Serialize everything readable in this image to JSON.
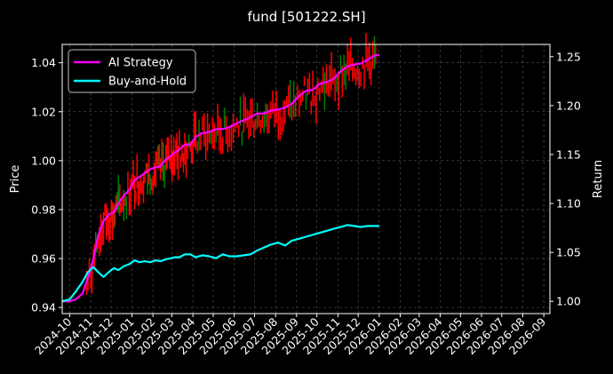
{
  "chart_data": {
    "type": "line",
    "title": "fund [501222.SH]",
    "ylabel": "Price",
    "ylabel_right": "Return",
    "grid": true,
    "legend": "top-left",
    "background": "#000000",
    "ylim": [
      0.9375,
      1.0475
    ],
    "ylim_right": [
      0.9875,
      1.2625
    ],
    "xlim": [
      "2024-09-20",
      "2026-09-10"
    ],
    "y_ticks": [
      "0.94",
      "0.96",
      "0.98",
      "1.00",
      "1.02",
      "1.04"
    ],
    "y_tick_values": [
      0.94,
      0.96,
      0.98,
      1.0,
      1.02,
      1.04
    ],
    "y_right_ticks": [
      "1.00",
      "1.05",
      "1.10",
      "1.15",
      "1.20",
      "1.25"
    ],
    "y_right_tick_values": [
      1.0,
      1.05,
      1.1,
      1.15,
      1.2,
      1.25
    ],
    "x_ticks": [
      "2024-10",
      "2024-11",
      "2024-12",
      "2025-01",
      "2025-02",
      "2025-03",
      "2025-04",
      "2025-05",
      "2025-06",
      "2025-07",
      "2025-08",
      "2025-09",
      "2025-10",
      "2025-11",
      "2025-12",
      "2026-01",
      "2026-02",
      "2026-03",
      "2026-04",
      "2026-05",
      "2026-06",
      "2026-07",
      "2026-08",
      "2026-09"
    ],
    "x_tick_dates": [
      "2024-10-01",
      "2024-11-01",
      "2024-12-01",
      "2025-01-01",
      "2025-02-01",
      "2025-03-01",
      "2025-04-01",
      "2025-05-01",
      "2025-06-01",
      "2025-07-01",
      "2025-08-01",
      "2025-09-01",
      "2025-10-01",
      "2025-11-01",
      "2025-12-01",
      "2026-01-01",
      "2026-02-01",
      "2026-03-01",
      "2026-04-01",
      "2026-05-01",
      "2026-06-01",
      "2026-07-01",
      "2026-08-01",
      "2026-09-01"
    ],
    "series": [
      {
        "name": "AI Strategy",
        "color": "#ff00ff",
        "axis": "right",
        "x": [
          "2024-09-20",
          "2024-10-01",
          "2024-10-10",
          "2024-10-20",
          "2024-10-28",
          "2024-11-05",
          "2024-11-12",
          "2024-11-20",
          "2024-11-28",
          "2024-12-05",
          "2024-12-12",
          "2024-12-20",
          "2024-12-28",
          "2025-01-05",
          "2025-01-12",
          "2025-01-20",
          "2025-01-28",
          "2025-02-05",
          "2025-02-12",
          "2025-02-20",
          "2025-02-28",
          "2025-03-05",
          "2025-03-12",
          "2025-03-20",
          "2025-03-28",
          "2025-04-05",
          "2025-04-15",
          "2025-04-25",
          "2025-05-05",
          "2025-05-15",
          "2025-05-25",
          "2025-06-05",
          "2025-06-15",
          "2025-06-25",
          "2025-07-05",
          "2025-07-15",
          "2025-07-25",
          "2025-08-05",
          "2025-08-15",
          "2025-08-25",
          "2025-09-05",
          "2025-09-15",
          "2025-09-25",
          "2025-10-05",
          "2025-10-15",
          "2025-10-25",
          "2025-11-05",
          "2025-11-15",
          "2025-11-25",
          "2025-12-05",
          "2025-12-15",
          "2025-12-25",
          "2026-01-01"
        ],
        "y": [
          1.0,
          1.0,
          1.002,
          1.008,
          1.024,
          1.043,
          1.067,
          1.082,
          1.089,
          1.091,
          1.1,
          1.108,
          1.114,
          1.124,
          1.127,
          1.131,
          1.135,
          1.137,
          1.138,
          1.145,
          1.149,
          1.152,
          1.155,
          1.16,
          1.16,
          1.168,
          1.172,
          1.173,
          1.176,
          1.176,
          1.178,
          1.182,
          1.185,
          1.188,
          1.192,
          1.192,
          1.195,
          1.196,
          1.198,
          1.202,
          1.21,
          1.215,
          1.216,
          1.222,
          1.224,
          1.227,
          1.235,
          1.24,
          1.242,
          1.243,
          1.247,
          1.251,
          1.252
        ]
      },
      {
        "name": "Buy-and-Hold",
        "color": "#00ffff",
        "axis": "right",
        "x": [
          "2024-09-20",
          "2024-10-01",
          "2024-10-10",
          "2024-10-20",
          "2024-10-28",
          "2024-11-05",
          "2024-11-12",
          "2024-11-20",
          "2024-11-28",
          "2024-12-05",
          "2024-12-12",
          "2024-12-20",
          "2024-12-28",
          "2025-01-05",
          "2025-01-12",
          "2025-01-20",
          "2025-01-28",
          "2025-02-05",
          "2025-02-12",
          "2025-02-20",
          "2025-02-28",
          "2025-03-05",
          "2025-03-12",
          "2025-03-20",
          "2025-03-28",
          "2025-04-05",
          "2025-04-15",
          "2025-04-25",
          "2025-05-05",
          "2025-05-15",
          "2025-05-25",
          "2025-06-05",
          "2025-06-15",
          "2025-06-25",
          "2025-07-05",
          "2025-07-15",
          "2025-07-25",
          "2025-08-05",
          "2025-08-15",
          "2025-08-25",
          "2025-09-05",
          "2025-09-15",
          "2025-09-25",
          "2025-10-05",
          "2025-10-15",
          "2025-10-25",
          "2025-11-05",
          "2025-11-15",
          "2025-11-25",
          "2025-12-05",
          "2025-12-15",
          "2025-12-25",
          "2026-01-01"
        ],
        "y": [
          1.0,
          1.002,
          1.01,
          1.02,
          1.03,
          1.035,
          1.03,
          1.025,
          1.03,
          1.034,
          1.032,
          1.036,
          1.038,
          1.042,
          1.04,
          1.041,
          1.04,
          1.042,
          1.041,
          1.043,
          1.044,
          1.045,
          1.045,
          1.048,
          1.048,
          1.045,
          1.047,
          1.046,
          1.044,
          1.048,
          1.046,
          1.046,
          1.047,
          1.048,
          1.052,
          1.055,
          1.058,
          1.06,
          1.057,
          1.062,
          1.064,
          1.066,
          1.068,
          1.07,
          1.072,
          1.074,
          1.076,
          1.078,
          1.077,
          1.076,
          1.077,
          1.077,
          1.077
        ]
      }
    ]
  }
}
